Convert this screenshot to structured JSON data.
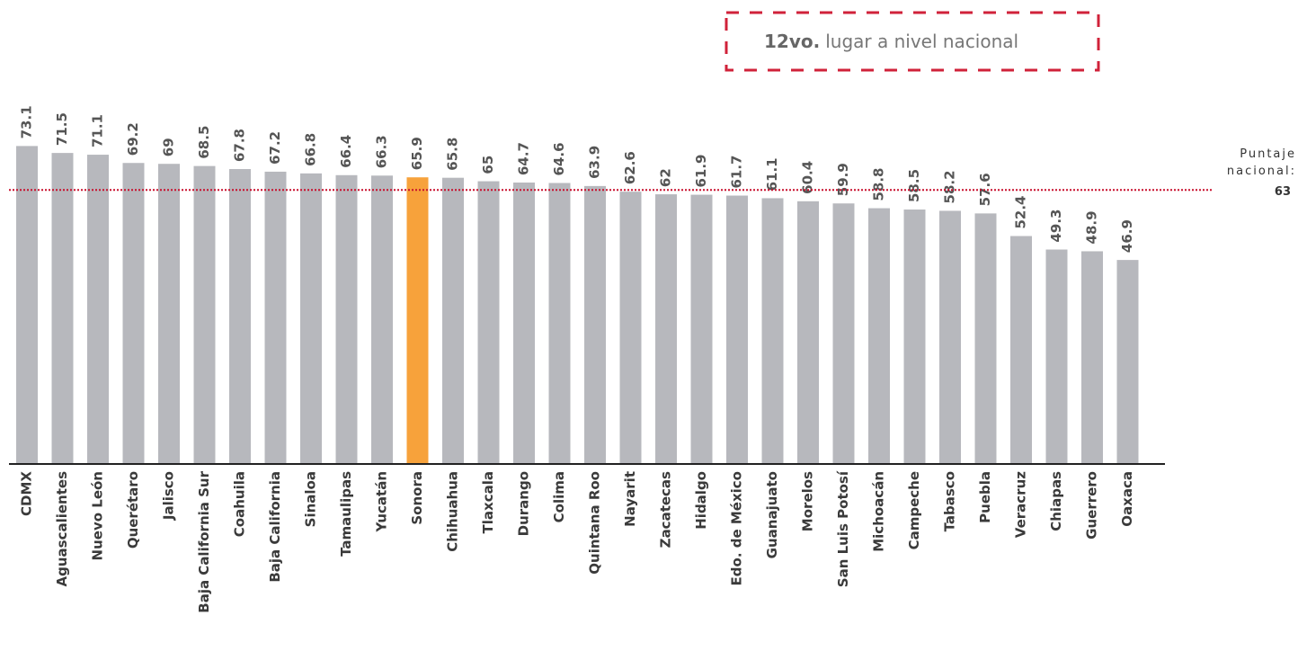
{
  "chart_data": {
    "type": "bar",
    "categories": [
      "CDMX",
      "Aguascalientes",
      "Nuevo León",
      "Querétaro",
      "Jalisco",
      "Baja California Sur",
      "Coahuila",
      "Baja California",
      "Sinaloa",
      "Tamaulipas",
      "Yucatán",
      "Sonora",
      "Chihuahua",
      "Tlaxcala",
      "Durango",
      "Colima",
      "Quintana Roo",
      "Nayarit",
      "Zacatecas",
      "Hidalgo",
      "Edo. de México",
      "Guanajuato",
      "Morelos",
      "San Luis Potosí",
      "Michoacán",
      "Campeche",
      "Tabasco",
      "Puebla",
      "Veracruz",
      "Chiapas",
      "Guerrero",
      "Oaxaca"
    ],
    "values": [
      73.1,
      71.5,
      71.1,
      69.2,
      69,
      68.5,
      67.8,
      67.2,
      66.8,
      66.4,
      66.3,
      65.9,
      65.8,
      65,
      64.7,
      64.6,
      63.9,
      62.6,
      62,
      61.9,
      61.7,
      61.1,
      60.4,
      59.9,
      58.8,
      58.5,
      58.2,
      57.6,
      52.4,
      49.3,
      48.9,
      46.9
    ],
    "colors": [
      "#b7b8bd",
      "#b7b8bd",
      "#b7b8bd",
      "#b7b8bd",
      "#b7b8bd",
      "#b7b8bd",
      "#b7b8bd",
      "#b7b8bd",
      "#b7b8bd",
      "#b7b8bd",
      "#b7b8bd",
      "#f7a23b",
      "#b7b8bd",
      "#b7b8bd",
      "#b7b8bd",
      "#b7b8bd",
      "#b7b8bd",
      "#b7b8bd",
      "#b7b8bd",
      "#b7b8bd",
      "#b7b8bd",
      "#b7b8bd",
      "#b7b8bd",
      "#b7b8bd",
      "#b7b8bd",
      "#b7b8bd",
      "#b7b8bd",
      "#b7b8bd",
      "#b7b8bd",
      "#b7b8bd",
      "#b7b8bd",
      "#b7b8bd"
    ],
    "ylim": [
      0,
      80
    ],
    "reference_line": {
      "value": 63,
      "label": "Puntaje nacional:",
      "color": "#c8102e"
    },
    "annotation": {
      "bold": "12vo.",
      "text": "lugar a nivel nacional",
      "color": "#d0223a"
    }
  }
}
